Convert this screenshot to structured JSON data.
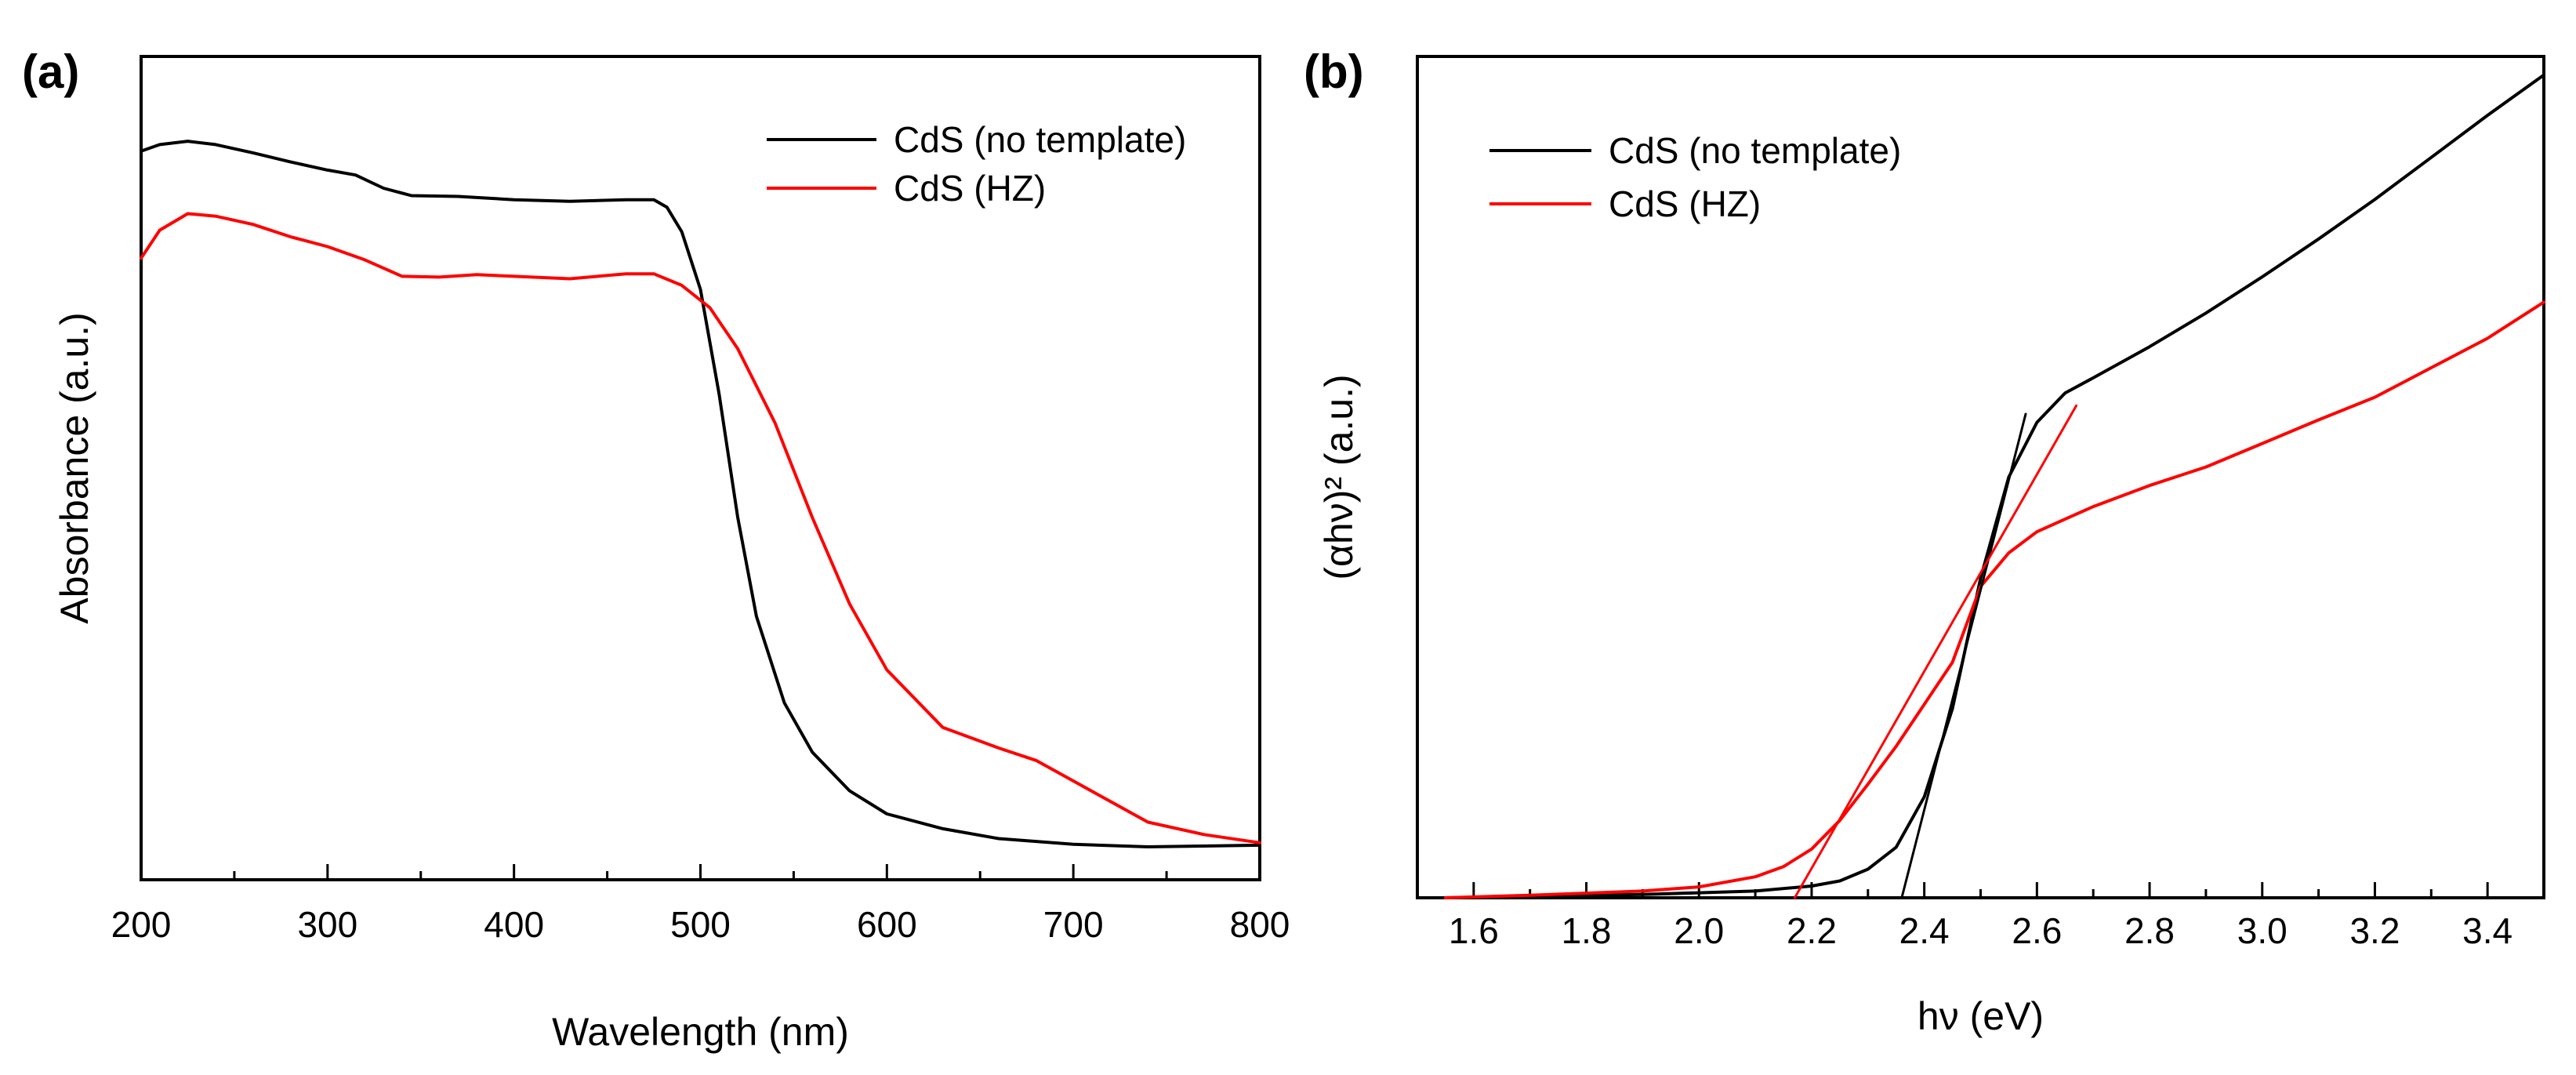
{
  "chart_data": [
    {
      "type": "line",
      "panel_label": "(a)",
      "title": "",
      "xlabel": "Wavelength (nm)",
      "ylabel": "Absorbance (a.u.)",
      "xlim": [
        200,
        800
      ],
      "ylim": [
        0,
        1
      ],
      "xticks": [
        "200",
        "300",
        "400",
        "500",
        "600",
        "700",
        "800"
      ],
      "grid": false,
      "legend_position": "top-right",
      "series": [
        {
          "name": "CdS (no template)",
          "color": "#000000",
          "x": [
            200,
            210,
            225,
            240,
            260,
            280,
            300,
            315,
            330,
            345,
            370,
            400,
            430,
            460,
            475,
            482,
            490,
            500,
            510,
            520,
            530,
            545,
            560,
            580,
            600,
            630,
            660,
            700,
            740,
            770,
            800
          ],
          "y": [
            0.885,
            0.893,
            0.897,
            0.893,
            0.883,
            0.872,
            0.862,
            0.856,
            0.84,
            0.831,
            0.83,
            0.826,
            0.824,
            0.826,
            0.826,
            0.817,
            0.787,
            0.717,
            0.59,
            0.44,
            0.32,
            0.215,
            0.155,
            0.108,
            0.08,
            0.062,
            0.05,
            0.043,
            0.04,
            0.041,
            0.042
          ]
        },
        {
          "name": "CdS (HZ)",
          "color": "#ff0000",
          "x": [
            200,
            210,
            225,
            240,
            260,
            280,
            300,
            320,
            340,
            360,
            380,
            400,
            430,
            460,
            475,
            490,
            505,
            520,
            540,
            560,
            580,
            600,
            630,
            660,
            680,
            700,
            720,
            740,
            770,
            800
          ],
          "y": [
            0.755,
            0.789,
            0.809,
            0.806,
            0.796,
            0.781,
            0.769,
            0.753,
            0.733,
            0.732,
            0.735,
            0.733,
            0.73,
            0.736,
            0.736,
            0.722,
            0.695,
            0.645,
            0.555,
            0.44,
            0.335,
            0.255,
            0.185,
            0.16,
            0.145,
            0.12,
            0.095,
            0.07,
            0.055,
            0.045
          ]
        }
      ]
    },
    {
      "type": "line",
      "panel_label": "(b)",
      "title": "",
      "xlabel": "hν (eV)",
      "ylabel": "(αhν)² (a.u.)",
      "xlim": [
        1.5,
        3.5
      ],
      "ylim": [
        0,
        1
      ],
      "xticks": [
        "1.6",
        "1.8",
        "2.0",
        "2.2",
        "2.4",
        "2.6",
        "2.8",
        "3.0",
        "3.2",
        "3.4"
      ],
      "grid": false,
      "legend_position": "top-left",
      "series": [
        {
          "name": "CdS (no template)",
          "color": "#000000",
          "x": [
            1.55,
            1.7,
            1.9,
            2.0,
            2.1,
            2.2,
            2.25,
            2.3,
            2.35,
            2.4,
            2.45,
            2.5,
            2.55,
            2.6,
            2.65,
            2.7,
            2.8,
            2.9,
            3.0,
            3.1,
            3.2,
            3.3,
            3.4,
            3.5
          ],
          "y": [
            0.0,
            0.002,
            0.004,
            0.006,
            0.008,
            0.014,
            0.02,
            0.034,
            0.06,
            0.12,
            0.225,
            0.38,
            0.5,
            0.565,
            0.6,
            0.618,
            0.655,
            0.695,
            0.738,
            0.783,
            0.83,
            0.88,
            0.93,
            0.978
          ]
        },
        {
          "name": "CdS (HZ)",
          "color": "#ff0000",
          "x": [
            1.55,
            1.7,
            1.9,
            2.0,
            2.1,
            2.15,
            2.2,
            2.25,
            2.3,
            2.35,
            2.4,
            2.45,
            2.5,
            2.55,
            2.6,
            2.65,
            2.7,
            2.8,
            2.9,
            3.0,
            3.1,
            3.2,
            3.3,
            3.4,
            3.5
          ],
          "y": [
            0.0,
            0.003,
            0.008,
            0.013,
            0.025,
            0.037,
            0.058,
            0.092,
            0.135,
            0.18,
            0.23,
            0.28,
            0.37,
            0.41,
            0.435,
            0.45,
            0.465,
            0.49,
            0.512,
            0.54,
            0.568,
            0.595,
            0.63,
            0.665,
            0.708
          ]
        },
        {
          "name": "tangent (no template)",
          "color": "#000000",
          "legend": false,
          "x": [
            2.36,
            2.58
          ],
          "y": [
            0.0,
            0.575
          ]
        },
        {
          "name": "tangent (HZ)",
          "color": "#ff0000",
          "legend": false,
          "x": [
            2.17,
            2.67
          ],
          "y": [
            0.0,
            0.585
          ]
        }
      ]
    }
  ]
}
